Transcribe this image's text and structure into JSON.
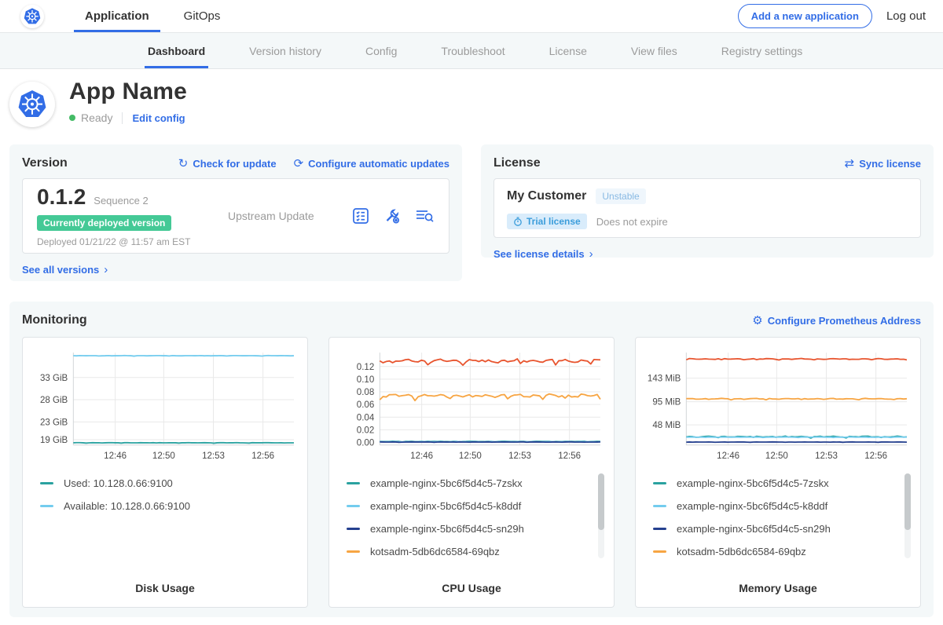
{
  "colors": {
    "accent_blue": "#326de6",
    "ready_green": "#44bb66",
    "deployed_badge_green": "#44c996",
    "panel_bg": "#f4f8f9",
    "border": "#dfe3e6",
    "muted_text": "#9b9b9b"
  },
  "icons": {
    "refresh": "↻",
    "schedule": "⟳",
    "sync": "⇄",
    "gear": "⚙",
    "chevron": "›"
  },
  "topnav": {
    "logo_icon": "kubernetes-icon",
    "tabs": [
      {
        "label": "Application",
        "active": true
      },
      {
        "label": "GitOps",
        "active": false
      }
    ],
    "add_app_button": "Add a new application",
    "logout_label": "Log out"
  },
  "subnav": {
    "active": "Dashboard",
    "tabs": [
      "Dashboard",
      "Version history",
      "Config",
      "Troubleshoot",
      "License",
      "View files",
      "Registry settings"
    ]
  },
  "app_header": {
    "name": "App Name",
    "status": "Ready",
    "edit_config": "Edit config"
  },
  "version_card": {
    "title": "Version",
    "check_for_update": "Check for update",
    "configure_auto_updates": "Configure automatic updates",
    "version": "0.1.2",
    "sequence": "Sequence 2",
    "deployed_badge": "Currently deployed version",
    "deployed_at": "Deployed 01/21/22 @ 11:57 am EST",
    "source": "Upstream Update",
    "action_icons": [
      "preflight-checks-icon",
      "config-wrench-icon",
      "deploy-logs-icon"
    ],
    "see_all": "See all versions"
  },
  "license_card": {
    "title": "License",
    "sync_label": "Sync license",
    "customer": "My Customer",
    "channel": "Unstable",
    "type_badge": "Trial license",
    "expiry": "Does not expire",
    "details_link": "See license details"
  },
  "monitoring": {
    "title": "Monitoring",
    "configure_link": "Configure Prometheus Address"
  },
  "chart_data": [
    {
      "type": "line",
      "title": "Disk Usage",
      "x_ticks": [
        {
          "pos": 0.19,
          "label": "12:46"
        },
        {
          "pos": 0.41,
          "label": "12:50"
        },
        {
          "pos": 0.635,
          "label": "12:53"
        },
        {
          "pos": 0.86,
          "label": "12:56"
        }
      ],
      "y_ticks": [
        {
          "value": 33,
          "label": "33 GiB"
        },
        {
          "value": 28,
          "label": "28 GiB"
        },
        {
          "value": 23,
          "label": "23 GiB"
        },
        {
          "value": 19,
          "label": "19 GiB"
        }
      ],
      "y_min": 17.8,
      "y_max": 38.6,
      "grid": true,
      "series": [
        {
          "name": "Available: 10.128.0.66:9100",
          "color": "#73ccee",
          "base": 37.9,
          "amp": 0.04
        },
        {
          "name": "Used: 10.128.0.66:9100",
          "color": "#2aa2a0",
          "base": 18.3,
          "amp": 0.04
        }
      ],
      "legend": [
        {
          "label": "Used: 10.128.0.66:9100",
          "color": "#2aa2a0"
        },
        {
          "label": "Available: 10.128.0.66:9100",
          "color": "#73ccee"
        }
      ],
      "scrollbar": false
    },
    {
      "type": "line",
      "title": "CPU Usage",
      "x_ticks": [
        {
          "pos": 0.19,
          "label": "12:46"
        },
        {
          "pos": 0.41,
          "label": "12:50"
        },
        {
          "pos": 0.635,
          "label": "12:53"
        },
        {
          "pos": 0.86,
          "label": "12:56"
        }
      ],
      "y_ticks": [
        {
          "value": 0.12,
          "label": "0.12"
        },
        {
          "value": 0.1,
          "label": "0.10"
        },
        {
          "value": 0.08,
          "label": "0.08"
        },
        {
          "value": 0.06,
          "label": "0.06"
        },
        {
          "value": 0.04,
          "label": "0.04"
        },
        {
          "value": 0.02,
          "label": "0.02"
        },
        {
          "value": 0.0,
          "label": "0.00"
        }
      ],
      "y_min": -0.004,
      "y_max": 0.142,
      "grid": true,
      "series": [
        {
          "color": "#e8552f",
          "base": 0.129,
          "amp": 0.0032
        },
        {
          "name": "kotsadm-5db6dc6584-69qbz",
          "color": "#f7a543",
          "base": 0.074,
          "amp": 0.0032
        },
        {
          "name": "example-nginx-5bc6f5d4c5-7zskx",
          "color": "#2aa2a0",
          "base": 0.0016,
          "amp": 0.0004
        },
        {
          "name": "example-nginx-5bc6f5d4c5-k8ddf",
          "color": "#73ccee",
          "base": 0.0011,
          "amp": 0.0003
        },
        {
          "name": "example-nginx-5bc6f5d4c5-sn29h",
          "color": "#25408f",
          "base": 0.0007,
          "amp": 0.0002
        }
      ],
      "legend": [
        {
          "label": "example-nginx-5bc6f5d4c5-7zskx",
          "color": "#2aa2a0"
        },
        {
          "label": "example-nginx-5bc6f5d4c5-k8ddf",
          "color": "#73ccee"
        },
        {
          "label": "example-nginx-5bc6f5d4c5-sn29h",
          "color": "#25408f"
        },
        {
          "label": "kotsadm-5db6dc6584-69qbz",
          "color": "#f7a543"
        }
      ],
      "scrollbar": true
    },
    {
      "type": "line",
      "title": "Memory Usage",
      "x_ticks": [
        {
          "pos": 0.19,
          "label": "12:46"
        },
        {
          "pos": 0.41,
          "label": "12:50"
        },
        {
          "pos": 0.635,
          "label": "12:53"
        },
        {
          "pos": 0.86,
          "label": "12:56"
        }
      ],
      "y_ticks": [
        {
          "value": 143,
          "label": "143 MiB"
        },
        {
          "value": 95,
          "label": "95 MiB"
        },
        {
          "value": 48,
          "label": "48 MiB"
        }
      ],
      "y_min": 7,
      "y_max": 195,
      "grid": true,
      "series": [
        {
          "color": "#e8552f",
          "base": 182,
          "amp": 1.1
        },
        {
          "name": "kotsadm-5db6dc6584-69qbz",
          "color": "#f7a543",
          "base": 101,
          "amp": 1.1
        },
        {
          "name": "example-nginx-5bc6f5d4c5-7zskx",
          "color": "#2aa2a0",
          "base": 24,
          "amp": 1.3
        },
        {
          "name": "example-nginx-5bc6f5d4c5-k8ddf",
          "color": "#73ccee",
          "base": 23,
          "amp": 0.4
        },
        {
          "name": "example-nginx-5bc6f5d4c5-sn29h",
          "color": "#25408f",
          "base": 13,
          "amp": 0.25
        }
      ],
      "legend": [
        {
          "label": "example-nginx-5bc6f5d4c5-7zskx",
          "color": "#2aa2a0"
        },
        {
          "label": "example-nginx-5bc6f5d4c5-k8ddf",
          "color": "#73ccee"
        },
        {
          "label": "example-nginx-5bc6f5d4c5-sn29h",
          "color": "#25408f"
        },
        {
          "label": "kotsadm-5db6dc6584-69qbz",
          "color": "#f7a543"
        }
      ],
      "scrollbar": true
    }
  ]
}
